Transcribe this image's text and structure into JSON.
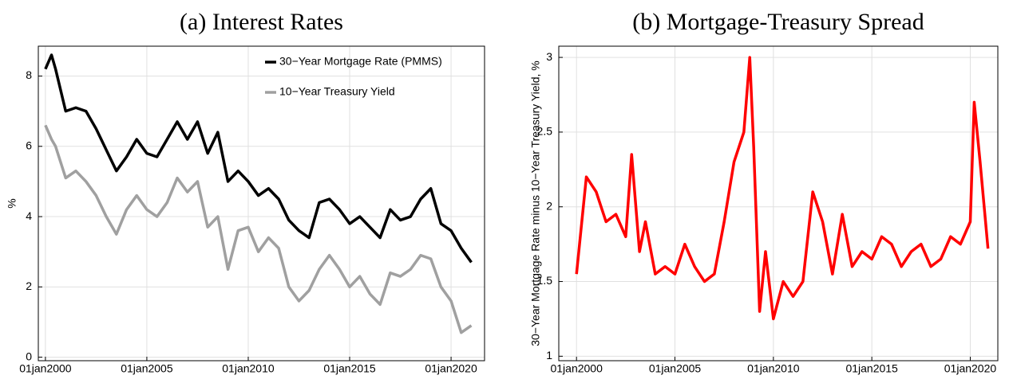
{
  "chart_data": [
    {
      "type": "line",
      "title": "(a) Interest Rates",
      "ylabel": "%",
      "x": [
        2000,
        2000.3,
        2000.5,
        2001,
        2001.5,
        2002,
        2002.5,
        2003,
        2003.5,
        2004,
        2004.5,
        2005,
        2005.5,
        2006,
        2006.5,
        2007,
        2007.5,
        2008,
        2008.5,
        2009,
        2009.5,
        2010,
        2010.5,
        2011,
        2011.5,
        2012,
        2012.5,
        2013,
        2013.5,
        2014,
        2014.5,
        2015,
        2015.5,
        2016,
        2016.5,
        2017,
        2017.5,
        2018,
        2018.5,
        2019,
        2019.5,
        2020,
        2020.5,
        2021
      ],
      "series": [
        {
          "name": "30−Year Mortgage Rate (PMMS)",
          "color": "#000000",
          "values": [
            8.2,
            8.6,
            8.2,
            7.0,
            7.1,
            7.0,
            6.5,
            5.9,
            5.3,
            5.7,
            6.2,
            5.8,
            5.7,
            6.2,
            6.7,
            6.2,
            6.7,
            5.8,
            6.4,
            5.0,
            5.3,
            5.0,
            4.6,
            4.8,
            4.5,
            3.9,
            3.6,
            3.4,
            4.4,
            4.5,
            4.2,
            3.8,
            4.0,
            3.7,
            3.4,
            4.2,
            3.9,
            4.0,
            4.5,
            4.8,
            3.8,
            3.6,
            3.1,
            2.7
          ]
        },
        {
          "name": "10−Year Treasury Yield",
          "color": "#a0a0a0",
          "values": [
            6.6,
            6.2,
            6.0,
            5.1,
            5.3,
            5.0,
            4.6,
            4.0,
            3.5,
            4.2,
            4.6,
            4.2,
            4.0,
            4.4,
            5.1,
            4.7,
            5.0,
            3.7,
            4.0,
            2.5,
            3.6,
            3.7,
            3.0,
            3.4,
            3.1,
            2.0,
            1.6,
            1.9,
            2.5,
            2.9,
            2.5,
            2.0,
            2.3,
            1.8,
            1.5,
            2.4,
            2.3,
            2.5,
            2.9,
            2.8,
            2.0,
            1.6,
            0.7,
            0.9
          ]
        }
      ],
      "xlim": [
        1999.65,
        2021.65
      ],
      "xticks": [
        {
          "value": 2000,
          "label": "01jan2000"
        },
        {
          "value": 2005,
          "label": "01jan2005"
        },
        {
          "value": 2010,
          "label": "01jan2010"
        },
        {
          "value": 2015,
          "label": "01jan2015"
        },
        {
          "value": 2020,
          "label": "01jan2020"
        }
      ],
      "ylim": [
        -0.1,
        8.85
      ],
      "yticks": [
        0,
        2,
        4,
        6,
        8
      ],
      "grid": true,
      "legend": "upper right"
    },
    {
      "type": "line",
      "title": "(b) Mortgage-Treasury Spread",
      "ylabel": "30−Year Mortgage Rate minus 10−Year Treasury Yield, %",
      "x": [
        2000,
        2000.5,
        2001,
        2001.5,
        2002,
        2002.5,
        2002.8,
        2003.2,
        2003.5,
        2004,
        2004.5,
        2005,
        2005.5,
        2006,
        2006.5,
        2007,
        2007.5,
        2008,
        2008.5,
        2008.8,
        2009,
        2009.3,
        2009.6,
        2010,
        2010.5,
        2011,
        2011.5,
        2012,
        2012.5,
        2013,
        2013.5,
        2014,
        2014.5,
        2015,
        2015.5,
        2016,
        2016.5,
        2017,
        2017.5,
        2018,
        2018.5,
        2019,
        2019.5,
        2020,
        2020.2,
        2020.5,
        2020.9
      ],
      "series": [
        {
          "color": "#ff0000",
          "values": [
            1.55,
            2.2,
            2.1,
            1.9,
            1.95,
            1.8,
            2.35,
            1.7,
            1.9,
            1.55,
            1.6,
            1.55,
            1.75,
            1.6,
            1.5,
            1.55,
            1.9,
            2.3,
            2.5,
            3.0,
            2.4,
            1.3,
            1.7,
            1.25,
            1.5,
            1.4,
            1.5,
            2.1,
            1.9,
            1.55,
            1.95,
            1.6,
            1.7,
            1.65,
            1.8,
            1.75,
            1.6,
            1.7,
            1.75,
            1.6,
            1.65,
            1.8,
            1.75,
            1.9,
            2.7,
            2.3,
            1.72
          ]
        }
      ],
      "xlim": [
        1999.1,
        2021.4
      ],
      "xticks": [
        {
          "value": 2000,
          "label": "01jan2000"
        },
        {
          "value": 2005,
          "label": "01jan2005"
        },
        {
          "value": 2010,
          "label": "01jan2010"
        },
        {
          "value": 2015,
          "label": "01jan2015"
        },
        {
          "value": 2020,
          "label": "01jan2020"
        }
      ],
      "ylim": [
        0.97,
        3.075
      ],
      "yticks": [
        1,
        1.5,
        2,
        2.5,
        3
      ],
      "grid": true
    }
  ]
}
